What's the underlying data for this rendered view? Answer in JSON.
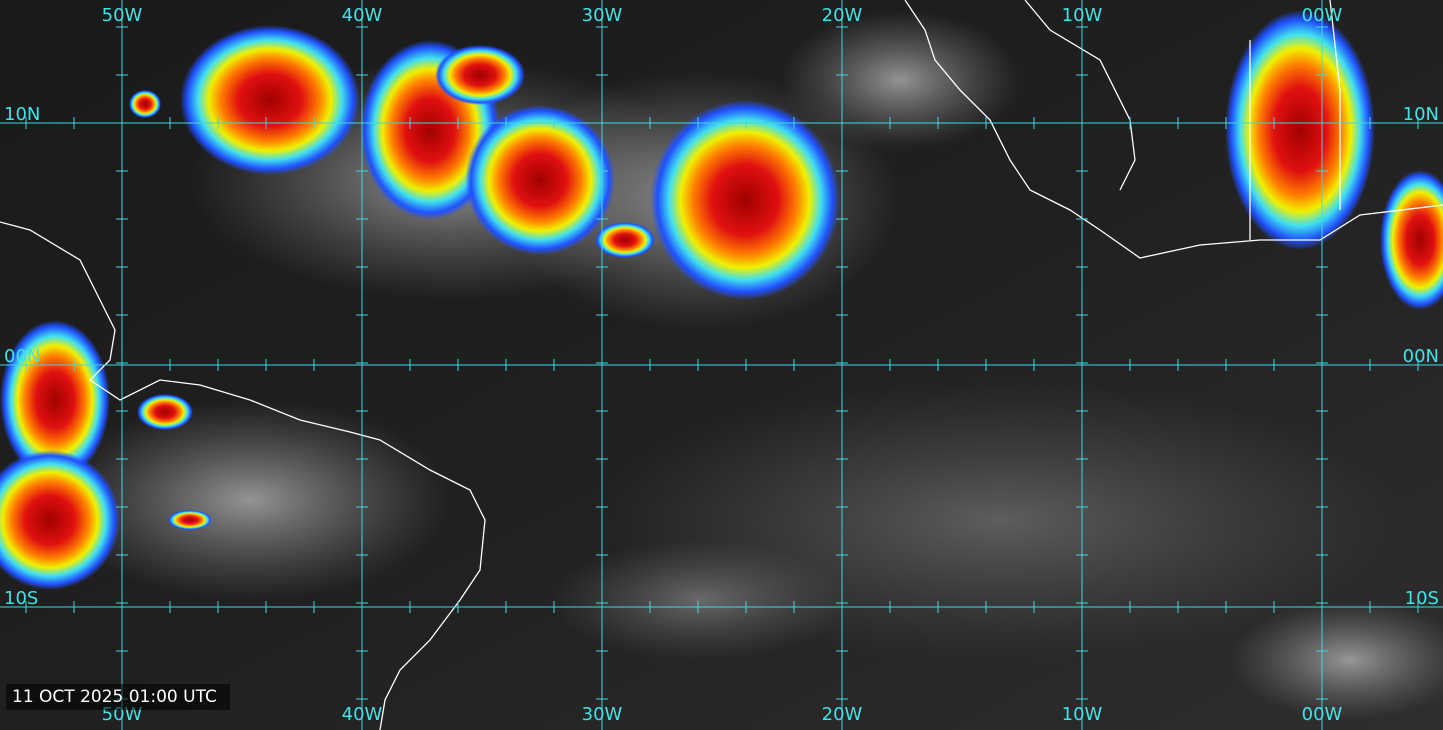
{
  "timestamp": "11 OCT 2025 01:00 UTC",
  "longitude_labels": [
    "50W",
    "40W",
    "30W",
    "20W",
    "10W",
    "00W"
  ],
  "latitude_labels": [
    "10N",
    "00N",
    "10S"
  ]
}
